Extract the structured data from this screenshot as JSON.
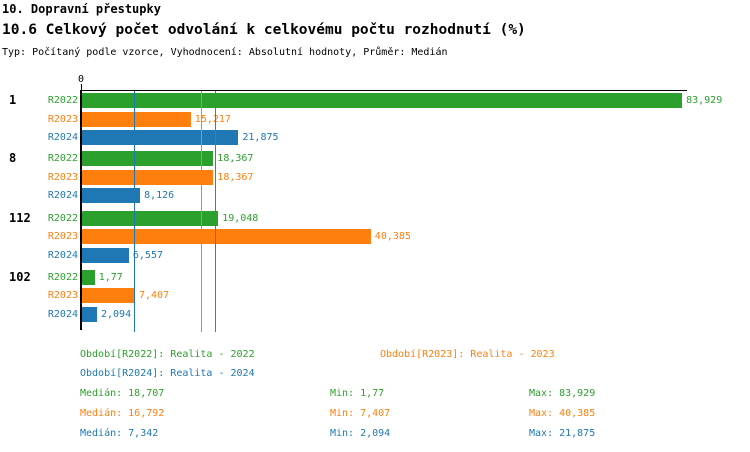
{
  "header": {
    "title": "10. Dopravní přestupky",
    "subtitle": "10.6 Celkový počet odvolání k celkovému počtu rozhodnutí (%)",
    "meta": "Typ: Počítaný podle vzorce, Vyhodnocení: Absolutní hodnoty, Průměr: Medián"
  },
  "colors": {
    "r2022": "#2ca02c",
    "r2023": "#ff7f0e",
    "r2024": "#1f77b4",
    "axis": "#000000"
  },
  "chart_data": {
    "type": "bar",
    "orientation": "horizontal",
    "title": "10.6 Celkový počet odvolání k celkovému počtu rozhodnutí (%)",
    "unit": "%",
    "x_zero_label": "0",
    "xlim": [
      0,
      84.9
    ],
    "grid": "median-lines-only",
    "legend_position": "bottom",
    "categories": [
      "1",
      "8",
      "112",
      "102"
    ],
    "series": [
      {
        "name": "R2022",
        "color": "#2ca02c",
        "values": [
          83.929,
          18.367,
          19.048,
          1.77
        ],
        "value_labels": [
          "83,929",
          "18,367",
          "19,048",
          "1,77"
        ],
        "median": 18.707,
        "min": 1.77,
        "max": 83.929
      },
      {
        "name": "R2023",
        "color": "#ff7f0e",
        "values": [
          15.217,
          18.367,
          40.385,
          7.407
        ],
        "value_labels": [
          "15,217",
          "18,367",
          "40,385",
          "7,407"
        ],
        "median": 16.792,
        "min": 7.407,
        "max": 40.385
      },
      {
        "name": "R2024",
        "color": "#1f77b4",
        "values": [
          21.875,
          8.126,
          6.557,
          2.094
        ],
        "value_labels": [
          "21,875",
          "8,126",
          "6,557",
          "2,094"
        ],
        "median": 7.342,
        "min": 2.094,
        "max": 21.875
      }
    ],
    "median_gridlines": [
      {
        "series": "R2024",
        "value": 7.342,
        "color": "#1f77b4"
      },
      {
        "series": "R2023",
        "value": 16.792,
        "color": "#ff7f0e"
      },
      {
        "series": "R2022",
        "value": 18.707,
        "color": "#2ca02c"
      }
    ]
  },
  "legend": {
    "items": [
      {
        "label": "Období[R2022]: Realita - 2022",
        "color": "#2ca02c"
      },
      {
        "label": "Období[R2023]: Realita - 2023",
        "color": "#ff7f0e"
      },
      {
        "label": "Období[R2024]: Realita - 2024",
        "color": "#1f77b4"
      }
    ]
  },
  "stats": {
    "rows": [
      {
        "median_label": "Medián: 18,707",
        "min_label": "Min: 1,77",
        "max_label": "Max: 83,929",
        "color": "#2ca02c"
      },
      {
        "median_label": "Medián: 16,792",
        "min_label": "Min: 7,407",
        "max_label": "Max: 40,385",
        "color": "#ff7f0e"
      },
      {
        "median_label": "Medián: 7,342",
        "min_label": "Min: 2,094",
        "max_label": "Max: 21,875",
        "color": "#1f77b4"
      }
    ]
  }
}
